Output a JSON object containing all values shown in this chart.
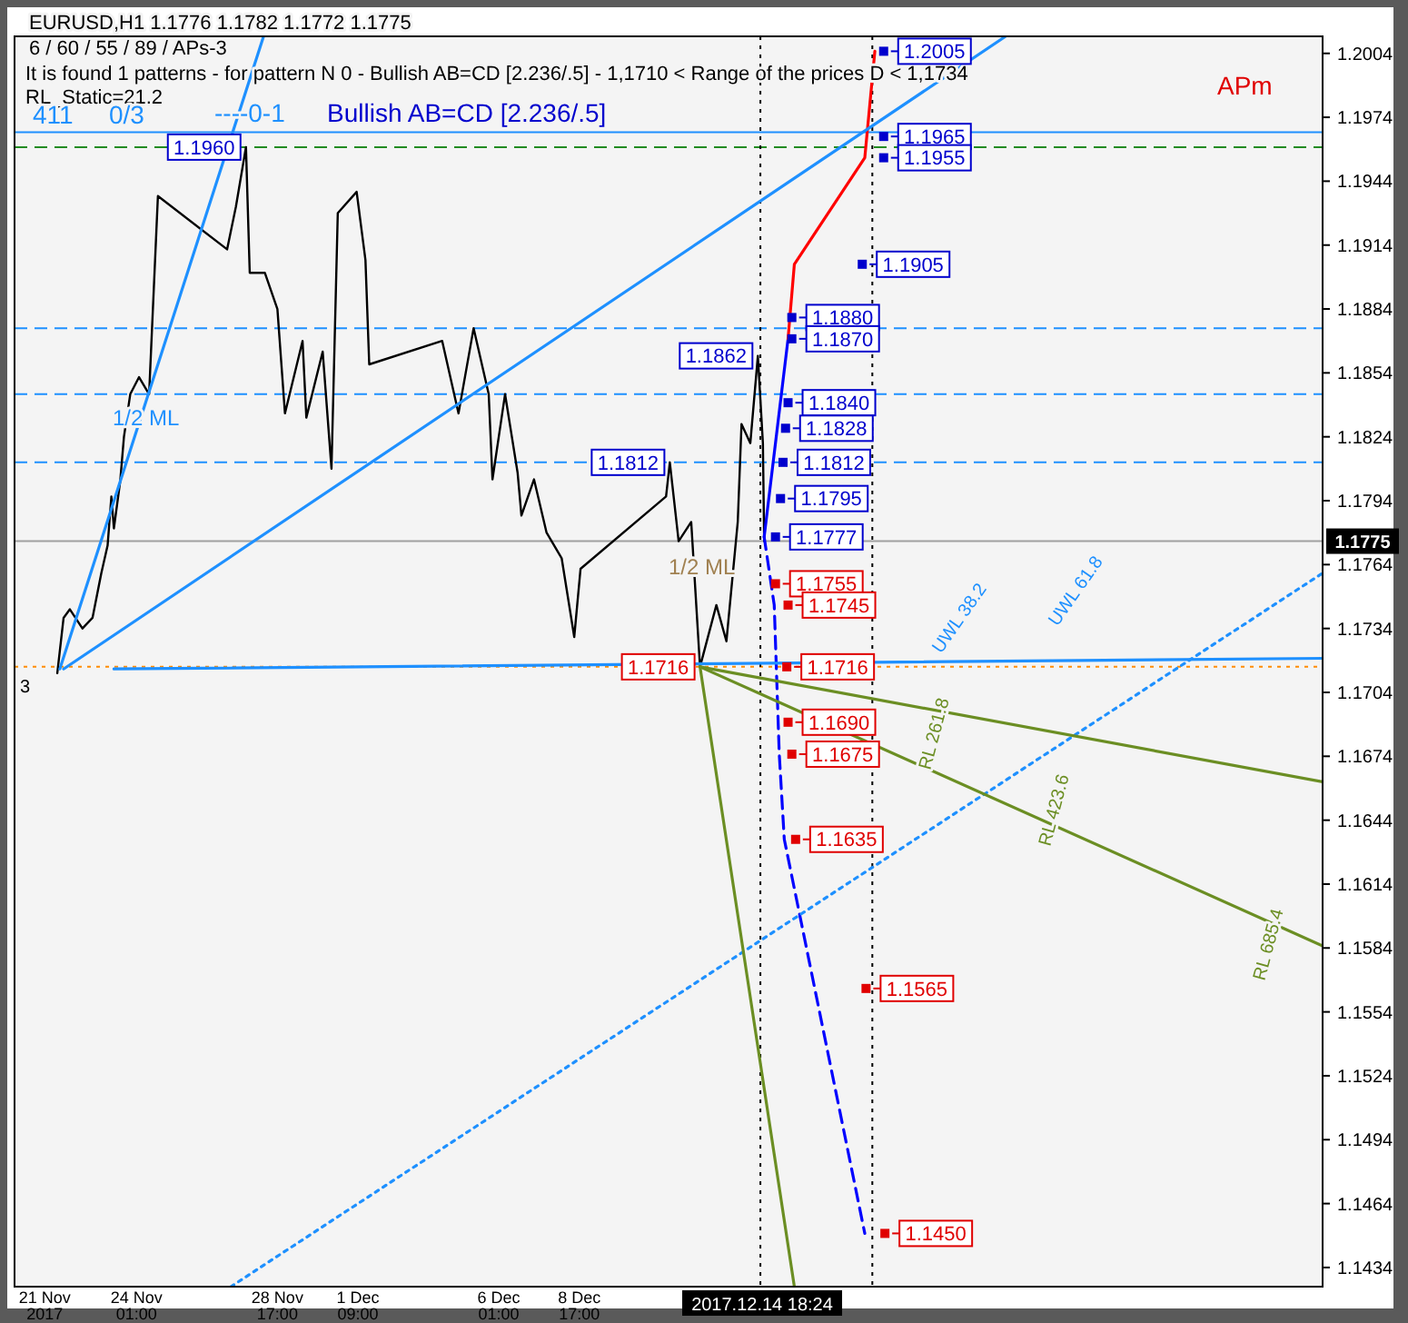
{
  "chart_data": {
    "type": "line",
    "xlim": [
      "2017-11-20T00:00",
      "2018-01-02T08:00"
    ],
    "ylim": [
      1.1425,
      1.2012
    ],
    "xticks": [
      {
        "value": "2017-11-21T00:00",
        "label": "21 Nov 2017"
      },
      {
        "value": "2017-11-24T01:00",
        "label": "24 Nov 01:00"
      },
      {
        "value": "2017-11-28T17:00",
        "label": "28 Nov 17:00"
      },
      {
        "value": "2017-12-01T09:00",
        "label": "1 Dec 09:00"
      },
      {
        "value": "2017-12-06T01:00",
        "label": "6 Dec 01:00"
      },
      {
        "value": "2017-12-08T17:00",
        "label": "8 Dec 17:00"
      },
      {
        "value": "2017-12-14T18:24",
        "label": "2017.12.14 18:24"
      }
    ],
    "yticks": [
      1.2004,
      1.1974,
      1.1944,
      1.1914,
      1.1884,
      1.1854,
      1.1824,
      1.1794,
      1.1764,
      1.1734,
      1.1704,
      1.1674,
      1.1644,
      1.1614,
      1.1584,
      1.1554,
      1.1524,
      1.1494,
      1.1464,
      1.1434
    ],
    "series": [
      {
        "color": "#000000",
        "x": [
          "2017-11-21T10:00",
          "2017-11-21T15:00",
          "2017-11-21T20:00",
          "2017-11-22T06:00",
          "2017-11-22T14:00",
          "2017-11-22T21:00",
          "2017-11-23T02:00",
          "2017-11-23T05:00",
          "2017-11-23T07:00",
          "2017-11-23T12:00",
          "2017-11-23T15:00",
          "2017-11-23T20:00",
          "2017-11-24T03:00",
          "2017-11-24T11:00",
          "2017-11-24T18:00",
          "2017-11-27T01:00",
          "2017-11-27T08:00",
          "2017-11-27T16:00",
          "2017-11-27T19:00",
          "2017-11-28T07:00",
          "2017-11-28T17:00",
          "2017-11-28T23:00",
          "2017-11-29T13:00",
          "2017-11-29T16:00",
          "2017-11-30T05:00",
          "2017-11-30T12:00",
          "2017-11-30T17:00",
          "2017-12-01T08:00",
          "2017-12-01T15:00",
          "2017-12-01T18:00",
          "2017-12-04T04:00",
          "2017-12-04T17:00",
          "2017-12-05T05:00",
          "2017-12-05T17:00",
          "2017-12-05T20:00",
          "2017-12-06T06:00",
          "2017-12-06T16:00",
          "2017-12-06T19:00",
          "2017-12-07T05:00",
          "2017-12-07T15:00",
          "2017-12-08T03:00",
          "2017-12-08T13:00",
          "2017-12-08T18:00",
          "2017-12-11T14:00",
          "2017-12-11T17:00",
          "2017-12-12T00:00",
          "2017-12-12T10:00",
          "2017-12-12T17:00",
          "2017-12-13T06:00",
          "2017-12-13T14:00",
          "2017-12-13T23:00",
          "2017-12-14T02:00",
          "2017-12-14T09:00",
          "2017-12-14T15:00",
          "2017-12-14T19:00",
          "2017-12-14T20:00"
        ],
        "values": [
          1.1713,
          1.1739,
          1.1743,
          1.1734,
          1.1739,
          1.176,
          1.1773,
          1.1796,
          1.1781,
          1.1803,
          1.1824,
          1.1844,
          1.1852,
          1.1844,
          1.1937,
          1.1912,
          1.1932,
          1.196,
          1.1901,
          1.1901,
          1.1884,
          1.1835,
          1.1869,
          1.1833,
          1.1864,
          1.1809,
          1.1929,
          1.1939,
          1.1907,
          1.1858,
          1.1869,
          1.1835,
          1.1875,
          1.1844,
          1.1804,
          1.1844,
          1.1807,
          1.1787,
          1.1804,
          1.1779,
          1.1767,
          1.173,
          1.1762,
          1.1796,
          1.1812,
          1.1775,
          1.1784,
          1.1716,
          1.1745,
          1.1728,
          1.1784,
          1.183,
          1.1821,
          1.1862,
          1.1821,
          1.1775
        ]
      },
      {
        "color": "#0000ff",
        "x": [
          "2017-12-14T20:00",
          "2017-12-15T15:00"
        ],
        "values": [
          1.1777,
          1.187
        ],
        "line_style": "solid"
      },
      {
        "color": "#ff0000",
        "x": [
          "2017-12-15T15:00",
          "2017-12-15T20:00",
          "2017-12-18T04:00",
          "2017-12-18T12:00"
        ],
        "values": [
          1.187,
          1.1905,
          1.1955,
          1.2005
        ],
        "line_style": "solid"
      },
      {
        "color": "#0000ff",
        "x": [
          "2017-12-14T20:00",
          "2017-12-15T04:00",
          "2017-12-15T08:00",
          "2017-12-15T12:00",
          "2017-12-18T04:00"
        ],
        "values": [
          1.1777,
          1.1745,
          1.1675,
          1.1635,
          1.145
        ],
        "line_style": "dashed"
      },
      {
        "color": "#1e90ff",
        "x": [
          "2017-11-21T12:00",
          "2017-11-28T06:00"
        ],
        "values": [
          1.1715,
          1.2012
        ],
        "line_style": "solid"
      },
      {
        "color": "#1e90ff",
        "x": [
          "2017-11-21T15:00",
          "2017-12-22T20:00"
        ],
        "values": [
          1.1715,
          1.2012
        ],
        "line_style": "solid"
      },
      {
        "color": "#1e90ff",
        "x": [
          "2017-11-23T07:00",
          "2018-01-02T08:00"
        ],
        "values": [
          1.1715,
          1.172
        ],
        "line_style": "solid"
      },
      {
        "color": "#1e90ff",
        "x": [
          "2017-11-27T04:00",
          "2018-01-02T08:00"
        ],
        "values": [
          1.1425,
          1.176
        ],
        "line_style": "dotted"
      },
      {
        "color": "#6b8e23",
        "x": [
          "2017-12-12T17:00",
          "2018-01-02T08:00"
        ],
        "values": [
          1.1716,
          1.1662
        ],
        "line_style": "solid"
      },
      {
        "color": "#6b8e23",
        "x": [
          "2017-12-12T17:00",
          "2018-01-02T08:00"
        ],
        "values": [
          1.1716,
          1.1585
        ],
        "line_style": "solid"
      },
      {
        "color": "#6b8e23",
        "x": [
          "2017-12-12T17:00",
          "2017-12-15T20:00"
        ],
        "values": [
          1.1716,
          1.1425
        ],
        "line_style": "solid"
      },
      {
        "type": "scatter",
        "marker": "square",
        "x": [
          "2017-12-18T19:00",
          "2017-12-18T19:00",
          "2017-12-18T19:00",
          "2017-12-18T02:00",
          "2017-12-15T18:00",
          "2017-12-15T18:00",
          "2017-12-15T15:00",
          "2017-12-15T13:00",
          "2017-12-15T11:00",
          "2017-12-15T09:00",
          "2017-12-15T05:00",
          "2017-12-15T05:00",
          "2017-12-15T15:00",
          "2017-12-15T14:00",
          "2017-12-15T15:00",
          "2017-12-15T18:00",
          "2017-12-15T21:00",
          "2017-12-18T05:00",
          "2017-12-18T20:00"
        ],
        "values": [
          1.2005,
          1.1965,
          1.1955,
          1.1905,
          1.188,
          1.187,
          1.184,
          1.1828,
          1.1812,
          1.1795,
          1.1777,
          1.1755,
          1.1745,
          1.1716,
          1.169,
          1.1675,
          1.1635,
          1.1565,
          1.145
        ],
        "colors": [
          "#0000cd",
          "#0000cd",
          "#0000cd",
          "#0000cd",
          "#0000cd",
          "#0000cd",
          "#0000cd",
          "#0000cd",
          "#0000cd",
          "#0000cd",
          "#0000cd",
          "#e00000",
          "#e00000",
          "#e00000",
          "#e00000",
          "#e00000",
          "#e00000",
          "#e00000",
          "#e00000"
        ]
      }
    ],
    "ref_lines": [
      {
        "axis": "y",
        "value": 1.196,
        "color": "#228b22",
        "line_style": "dashed"
      },
      {
        "axis": "y",
        "value": 1.1716,
        "color": "#ff8c00",
        "line_style": "dotted"
      },
      {
        "axis": "y",
        "value": 1.1967,
        "color": "#1e90ff",
        "line_style": "solid"
      },
      {
        "axis": "y",
        "value": 1.1875,
        "color": "#1e90ff",
        "line_style": "dashed"
      },
      {
        "axis": "y",
        "value": 1.1844,
        "color": "#1e90ff",
        "line_style": "dashed"
      },
      {
        "axis": "y",
        "value": 1.1812,
        "color": "#1e90ff",
        "line_style": "dashed"
      },
      {
        "axis": "y",
        "value": 1.1775,
        "color": "#a0a0a0",
        "line_style": "solid",
        "label": "1.1775"
      },
      {
        "axis": "x",
        "value": "2017-12-14T17:00",
        "color": "#000000",
        "line_style": "dotted"
      },
      {
        "axis": "x",
        "value": "2017-12-18T10:00",
        "color": "#000000",
        "line_style": "dotted"
      }
    ],
    "annotations": [
      "EURUSD,H1  1.1776 1.1782 1.1772 1.1775",
      "6 / 60 / 55 / 89 / APs-3",
      "It is found 1 patterns  -  for pattern N 0 - Bullish AB=CD [2.236/.5] - 1,1710 < Range of the prices D < 1,1734",
      "RL_Static=21.2",
      "411",
      "0/3",
      "----0-1",
      "Bullish AB=CD [2.236/.5]",
      "APm",
      "1/2 ML",
      "1/2 ML",
      "RL 261.8",
      "RL 423.6",
      "RL 685.4",
      "UWL 38.2",
      "UWL 61.8",
      "3",
      {
        "text": "1.1960",
        "x": "2017-11-27T16:00",
        "y": 1.196
      },
      {
        "text": "1.1812",
        "x": "2017-12-11T17:00",
        "y": 1.1812
      },
      {
        "text": "1.1716",
        "x": "2017-12-12T17:00",
        "y": 1.1716
      },
      {
        "text": "1.1862",
        "x": "2017-12-14T15:00",
        "y": 1.1862
      },
      {
        "text": "1.2005",
        "x": "2017-12-18T19:00",
        "y": 1.2005
      },
      {
        "text": "1.1965",
        "x": "2017-12-18T19:00",
        "y": 1.1965
      },
      {
        "text": "1.1955",
        "x": "2017-12-18T19:00",
        "y": 1.1955
      },
      {
        "text": "1.1905",
        "x": "2017-12-18T02:00",
        "y": 1.1905
      },
      {
        "text": "1.1880",
        "x": "2017-12-15T18:00",
        "y": 1.188
      },
      {
        "text": "1.1870",
        "x": "2017-12-15T18:00",
        "y": 1.187
      },
      {
        "text": "1.1840",
        "x": "2017-12-15T15:00",
        "y": 1.184
      },
      {
        "text": "1.1828",
        "x": "2017-12-15T13:00",
        "y": 1.1828
      },
      {
        "text": "1.1812",
        "x": "2017-12-15T11:00",
        "y": 1.1812
      },
      {
        "text": "1.1795",
        "x": "2017-12-15T09:00",
        "y": 1.1795
      },
      {
        "text": "1.1777",
        "x": "2017-12-15T05:00",
        "y": 1.1777
      },
      {
        "text": "1.1755",
        "x": "2017-12-15T05:00",
        "y": 1.1755
      },
      {
        "text": "1.1745",
        "x": "2017-12-15T15:00",
        "y": 1.1745
      },
      {
        "text": "1.1716",
        "x": "2017-12-15T14:00",
        "y": 1.1716
      },
      {
        "text": "1.1690",
        "x": "2017-12-15T15:00",
        "y": 1.169
      },
      {
        "text": "1.1675",
        "x": "2017-12-15T18:00",
        "y": 1.1675
      },
      {
        "text": "1.1635",
        "x": "2017-12-15T21:00",
        "y": 1.1635
      },
      {
        "text": "1.1565",
        "x": "2017-12-18T05:00",
        "y": 1.1565
      },
      {
        "text": "1.1450",
        "x": "2017-12-18T20:00",
        "y": 1.145
      }
    ]
  }
}
